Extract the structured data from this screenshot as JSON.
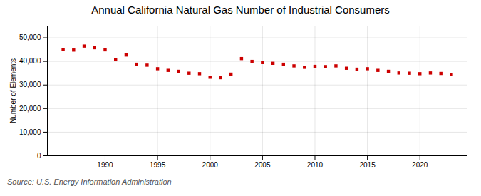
{
  "chart_data": {
    "type": "scatter",
    "title": "Annual California Natural Gas Number of Industrial Consumers",
    "ylabel": "Number of Elements",
    "annotations": [
      "Source: U.S. Energy Information Administration"
    ],
    "x": [
      1986,
      1987,
      1988,
      1989,
      1990,
      1991,
      1992,
      1993,
      1994,
      1995,
      1996,
      1997,
      1998,
      1999,
      2000,
      2001,
      2002,
      2003,
      2004,
      2005,
      2006,
      2007,
      2008,
      2009,
      2010,
      2011,
      2012,
      2013,
      2014,
      2015,
      2016,
      2017,
      2018,
      2019,
      2020,
      2021,
      2022,
      2023
    ],
    "values": [
      45000,
      44800,
      46500,
      45800,
      44900,
      40700,
      42700,
      38800,
      38400,
      36900,
      36200,
      35800,
      35000,
      34800,
      33300,
      33100,
      34600,
      41200,
      40000,
      39500,
      39200,
      38800,
      38100,
      37500,
      37900,
      37800,
      38100,
      37100,
      36700,
      36900,
      36200,
      35800,
      35100,
      35000,
      34800,
      35100,
      34900,
      34400
    ],
    "color": "#cc0000",
    "marker": "square",
    "xlim": [
      1984.5,
      2024.5
    ],
    "xticks": [
      1990,
      1995,
      2000,
      2005,
      2010,
      2015,
      2020
    ],
    "ylim": [
      0,
      55000
    ],
    "yticks": [
      0,
      {
        "value": 10000,
        "label": "10,000"
      },
      {
        "value": 20000,
        "label": "20,000"
      },
      {
        "value": 30000,
        "label": "30,000"
      },
      {
        "value": 40000,
        "label": "40,000"
      },
      {
        "value": 50000,
        "label": "50,000"
      }
    ],
    "grid": true
  }
}
